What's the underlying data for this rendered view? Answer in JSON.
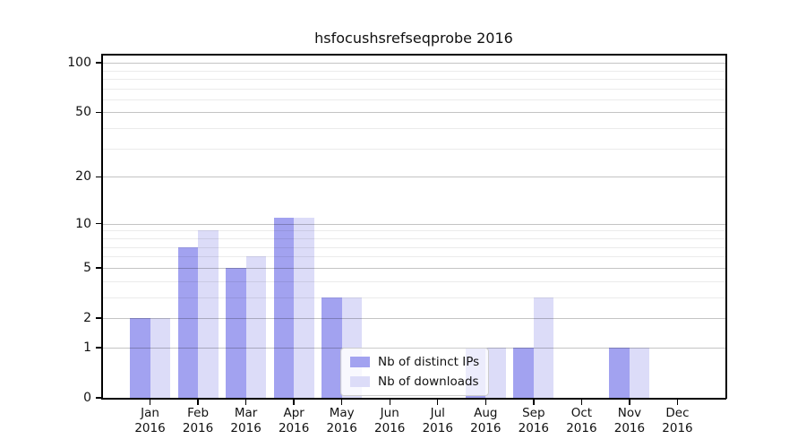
{
  "title": "hsfocushsrefseqprobe 2016",
  "chart_data": {
    "type": "bar",
    "title": "hsfocushsrefseqprobe 2016",
    "categories": [
      "Jan 2016",
      "Feb 2016",
      "Mar 2016",
      "Apr 2016",
      "May 2016",
      "Jun 2016",
      "Jul 2016",
      "Aug 2016",
      "Sep 2016",
      "Oct 2016",
      "Nov 2016",
      "Dec 2016"
    ],
    "x_tick_months": [
      "Jan",
      "Feb",
      "Mar",
      "Apr",
      "May",
      "Jun",
      "Jul",
      "Aug",
      "Sep",
      "Oct",
      "Nov",
      "Dec"
    ],
    "x_tick_year": "2016",
    "series": [
      {
        "name": "Nb of distinct IPs",
        "color": "#a2a2f0",
        "values": [
          2,
          7,
          5,
          11,
          3,
          0,
          0,
          1,
          1,
          0,
          1,
          0
        ]
      },
      {
        "name": "Nb of downloads",
        "color": "#dcdcf8",
        "values": [
          2,
          9,
          6,
          11,
          3,
          0,
          0,
          1,
          3,
          0,
          1,
          0
        ]
      }
    ],
    "xlabel": "",
    "ylabel": "",
    "yscale": "log1p",
    "ylim": [
      0,
      112
    ],
    "y_major_ticks": [
      0,
      1,
      2,
      5,
      10,
      20,
      50,
      100
    ],
    "y_minor_ticks": [
      3,
      4,
      6,
      7,
      8,
      9,
      30,
      40,
      60,
      70,
      80,
      90
    ],
    "grid": "on",
    "legend_position": "inside-lower-center"
  },
  "colors": {
    "bar_distinct_ips": "#a2a2f0",
    "bar_downloads": "#dcdcf8",
    "grid_major": "#c4c4c4",
    "grid_minor": "#ebebeb",
    "spine": "#000000",
    "background": "#ffffff",
    "text": "#111111"
  }
}
